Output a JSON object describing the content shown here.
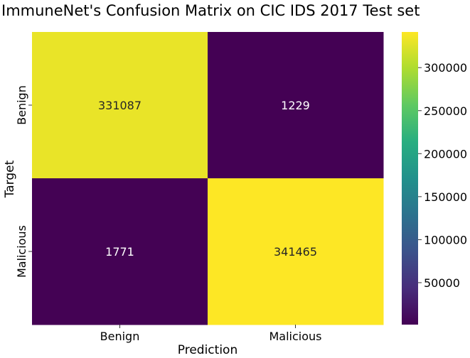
{
  "chart_data": {
    "type": "heatmap",
    "title": "ImmuneNet's Confusion Matrix on CIC IDS 2017 Test set",
    "xlabel": "Prediction",
    "ylabel": "Target",
    "x_categories": [
      "Benign",
      "Malicious"
    ],
    "y_categories": [
      "Benign",
      "Malicious"
    ],
    "values": [
      [
        331087,
        1229
      ],
      [
        1771,
        341465
      ]
    ],
    "colormap": "viridis",
    "colorbar": {
      "range": [
        1229,
        341465
      ],
      "ticks": [
        50000,
        100000,
        150000,
        200000,
        250000,
        300000
      ],
      "tick_labels": [
        "50000",
        "100000",
        "150000",
        "200000",
        "250000",
        "300000"
      ]
    },
    "text_color": "#ffffff"
  }
}
